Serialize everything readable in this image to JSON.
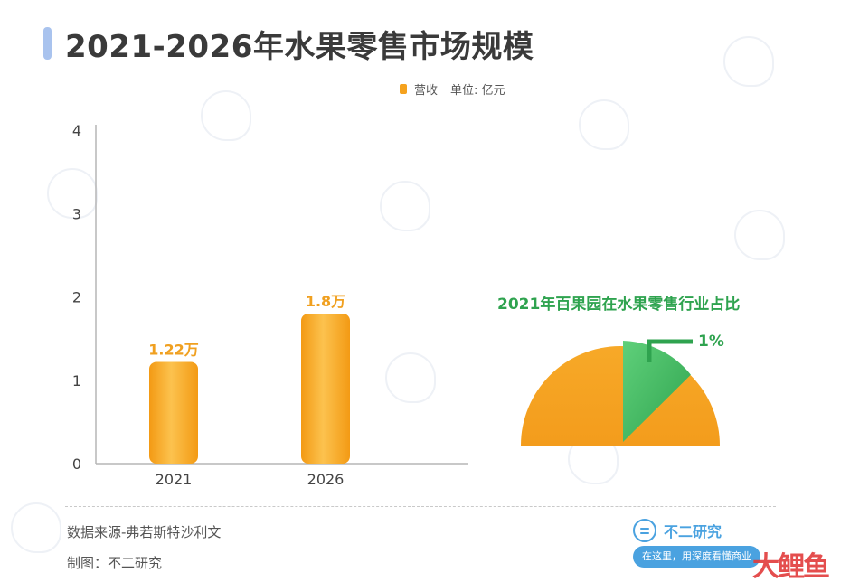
{
  "page": {
    "title": "2021-2026年水果零售市场规模",
    "source": "数据来源-弗若斯特沙利文",
    "maker": "制图：不二研究"
  },
  "legend": {
    "series_label": "营收",
    "unit_label": "单位: 亿元"
  },
  "branding": {
    "name": "不二研究",
    "slogan": "在这里，用深度看懂商业",
    "logo_text": "大鲤鱼"
  },
  "colors": {
    "bar": "#f5a21e",
    "bar_highlight": "#fcc24e",
    "accent_green": "#2fa34f",
    "title_accent": "#a9c3ee"
  },
  "chart_data": [
    {
      "type": "bar",
      "categories": [
        "2021",
        "2026"
      ],
      "series": [
        {
          "name": "营收",
          "values": [
            1.22,
            1.8
          ],
          "labels": [
            "1.22万",
            "1.8万"
          ]
        }
      ],
      "ylim": [
        0,
        4
      ],
      "yticks": [
        "0",
        "1",
        "2",
        "3",
        "4"
      ],
      "xlabel": "",
      "ylabel": "",
      "grid": false
    },
    {
      "type": "pie",
      "title": "2021年百果园在水果零售行业占比",
      "slices": [
        {
          "label": "1%",
          "value": 1
        }
      ]
    }
  ]
}
